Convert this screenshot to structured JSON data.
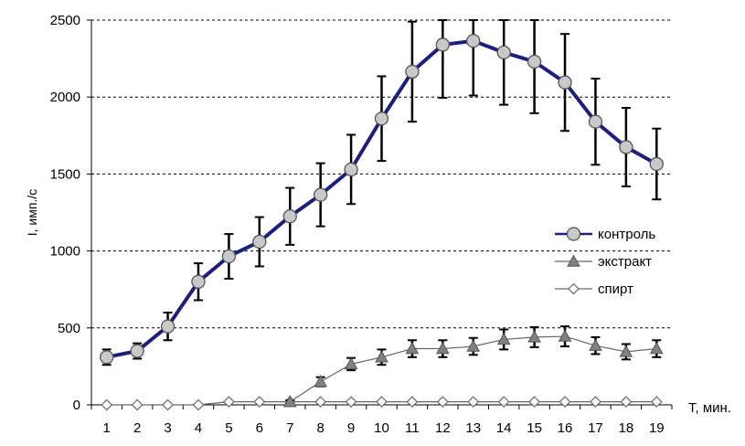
{
  "chart_data": {
    "type": "line",
    "xlabel": "T, мин.",
    "ylabel": "I, имп./с",
    "x": [
      1,
      2,
      3,
      4,
      5,
      6,
      7,
      8,
      9,
      10,
      11,
      12,
      13,
      14,
      15,
      16,
      17,
      18,
      19
    ],
    "ylim": [
      0,
      2500
    ],
    "yticks": [
      0,
      500,
      1000,
      1500,
      2000,
      2500
    ],
    "grid": "horizontal-dashed",
    "legend_position": "right",
    "series": [
      {
        "name": "контроль",
        "color": "#1b1f7a",
        "marker": "circle",
        "values": [
          310,
          350,
          510,
          800,
          965,
          1060,
          1225,
          1365,
          1530,
          1860,
          2165,
          2340,
          2365,
          2290,
          2230,
          2095,
          1840,
          1675,
          1565
        ],
        "errors": [
          50,
          50,
          90,
          120,
          145,
          160,
          185,
          205,
          225,
          275,
          325,
          345,
          355,
          340,
          335,
          315,
          280,
          255,
          230
        ]
      },
      {
        "name": "экстракт",
        "color": "#555555",
        "marker": "triangle",
        "values": [
          null,
          null,
          null,
          null,
          null,
          null,
          20,
          150,
          265,
          310,
          365,
          365,
          380,
          425,
          440,
          445,
          385,
          345,
          365
        ],
        "errors": [
          null,
          null,
          null,
          null,
          null,
          null,
          10,
          30,
          40,
          50,
          55,
          55,
          55,
          65,
          65,
          65,
          55,
          50,
          55
        ]
      },
      {
        "name": "спирт",
        "color": "#555555",
        "marker": "diamond",
        "values": [
          0,
          0,
          0,
          0,
          20,
          20,
          20,
          20,
          20,
          20,
          20,
          20,
          20,
          20,
          20,
          20,
          20,
          20,
          20
        ],
        "errors": [
          null,
          null,
          null,
          null,
          null,
          null,
          null,
          null,
          null,
          null,
          null,
          null,
          null,
          null,
          null,
          null,
          null,
          null,
          null
        ]
      }
    ]
  }
}
